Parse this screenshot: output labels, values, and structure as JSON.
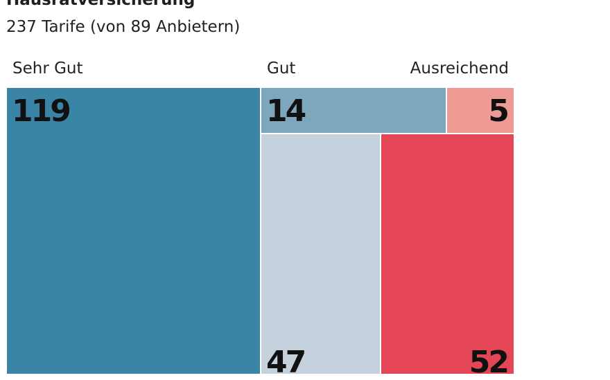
{
  "title": "Hausratversicherung",
  "subtitle": "237 Tarife (von 89 Anbietern)",
  "chart_data": {
    "type": "treemap",
    "total": 237,
    "groups": [
      {
        "label": "Sehr Gut",
        "cells": [
          {
            "value": 119,
            "color": "#3a85a5"
          }
        ]
      },
      {
        "label": "Gut",
        "cells": [
          {
            "value": 14,
            "color": "#7ea6bd"
          },
          {
            "value": 47,
            "color": "#c5d2de"
          }
        ]
      },
      {
        "label": "Ausreichend",
        "cells": [
          {
            "value": 5,
            "color": "#ef9a94"
          },
          {
            "value": 52,
            "color": "#e54656"
          }
        ]
      }
    ]
  }
}
